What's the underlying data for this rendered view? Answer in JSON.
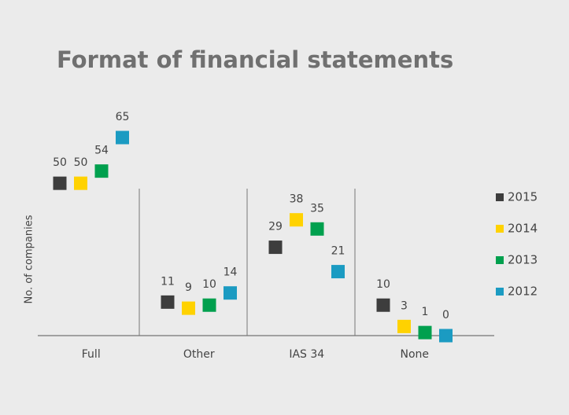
{
  "chart_data": {
    "type": "dot",
    "title": "Format of financial statements",
    "y_label": "No. of companies",
    "categories": [
      "Full",
      "Other",
      "IAS 34",
      "None"
    ],
    "series": [
      {
        "name": "2015",
        "color": "#3d3d3d",
        "values": [
          50,
          11,
          29,
          10
        ]
      },
      {
        "name": "2014",
        "color": "#ffd200",
        "values": [
          50,
          9,
          38,
          3
        ]
      },
      {
        "name": "2013",
        "color": "#00a04e",
        "values": [
          54,
          10,
          35,
          1
        ]
      },
      {
        "name": "2012",
        "color": "#1b9bc2",
        "values": [
          65,
          14,
          21,
          0
        ]
      }
    ],
    "ylim": [
      0,
      65
    ]
  }
}
